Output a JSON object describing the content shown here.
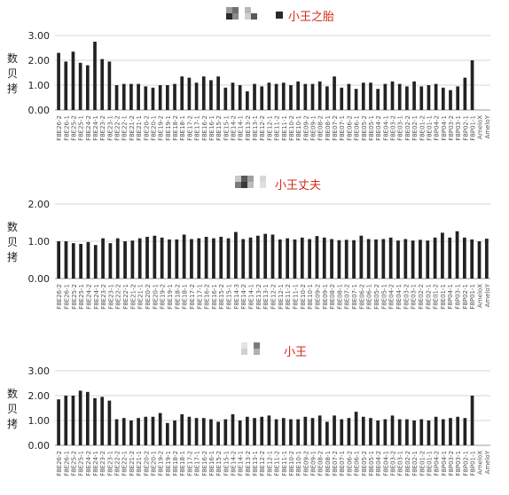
{
  "chart_data": [
    {
      "type": "bar",
      "title": "小王之胎",
      "ylabel": "数贝拷",
      "ylim": [
        0,
        3
      ],
      "yticks": [
        "0.00",
        "1.00",
        "2.00",
        "3.00"
      ],
      "grid": true,
      "bar_color": "#222222",
      "categories": [
        "F8E26-2",
        "F8E26-1",
        "F8E25-2",
        "F8E25-1",
        "F8E24-2",
        "F8E24-1",
        "F8E23-2",
        "F8E23-1",
        "F8E22-2",
        "F8E22-1",
        "F8E21-2",
        "F8E21-1",
        "F8E20-2",
        "F8E20-1",
        "F8E19-2",
        "F8E19-1",
        "F8E18-2",
        "F8E18-1",
        "F8E17-2",
        "F8E17-1",
        "F8E16-2",
        "F8E16-1",
        "F8E15-2",
        "F8E15-1",
        "F8E14-2",
        "F8E14-1",
        "F8E13-2",
        "F8E13-1",
        "F8E12-2",
        "F8E12-1",
        "F8E11-2",
        "F8E11-1",
        "F8E10-2",
        "F8E10-1",
        "F8E09-2",
        "F8E09-1",
        "F8E08-2",
        "F8E08-1",
        "F8E07-2",
        "F8E07-1",
        "F8E06-2",
        "F8E06-1",
        "F8E05-2",
        "F8E05-1",
        "F8E04-2",
        "F8E04-1",
        "F8E03-2",
        "F8E03-1",
        "F8E02-2",
        "F8E02-1",
        "F8E01-2",
        "F8E01-1",
        "F8P04-2",
        "F8P04-1",
        "F8P03-2",
        "F8P03-1",
        "F8P02-1",
        "F8P01-1",
        "AmeloX",
        "AmeloY"
      ],
      "values": [
        2.3,
        1.95,
        2.35,
        1.9,
        1.8,
        2.75,
        2.05,
        1.95,
        1.0,
        1.05,
        1.05,
        1.05,
        0.95,
        0.9,
        1.0,
        1.0,
        1.05,
        1.35,
        1.3,
        1.1,
        1.35,
        1.2,
        1.35,
        0.9,
        1.1,
        1.0,
        0.75,
        1.05,
        0.95,
        1.1,
        1.05,
        1.1,
        1.0,
        1.15,
        1.05,
        1.05,
        1.15,
        0.95,
        1.35,
        0.9,
        1.05,
        0.85,
        1.1,
        1.1,
        0.85,
        1.05,
        1.15,
        1.05,
        0.95,
        1.15,
        0.95,
        1.0,
        1.05,
        0.9,
        0.8,
        0.95,
        1.3,
        2.0,
        0.0,
        0.0
      ]
    },
    {
      "type": "bar",
      "title": "小王丈夫",
      "ylabel": "数贝拷",
      "ylim": [
        0,
        2
      ],
      "yticks": [
        "0.00",
        "1.00",
        "2.00"
      ],
      "grid": true,
      "bar_color": "#222222",
      "categories": [
        "F8E26-2",
        "F8E26-1",
        "F8E25-2",
        "F8E25-1",
        "F8E24-2",
        "F8E24-1",
        "F8E23-2",
        "F8E23-1",
        "F8E22-2",
        "F8E22-1",
        "F8E21-2",
        "F8E21-1",
        "F8E20-2",
        "F8E20-1",
        "F8E19-2",
        "F8E19-1",
        "F8E18-2",
        "F8E18-1",
        "F8E17-2",
        "F8E17-1",
        "F8E16-2",
        "F8E16-1",
        "F8E15-2",
        "F8E15-1",
        "F8E14-3",
        "F8E14-2",
        "F8E14-1",
        "F8E13-2",
        "F8E13-1",
        "F8E12-2",
        "F8E12-1",
        "F8E11-2",
        "F8E11-1",
        "F8E10-2",
        "F8E10-1",
        "F8E09-2",
        "F8E09-1",
        "F8E08-2",
        "F8E08-1",
        "F8E07-2",
        "F8E07-1",
        "F8E06-2",
        "F8E06-1",
        "F8E05-2",
        "F8E05-1",
        "F8E04-2",
        "F8E04-1",
        "F8E03-2",
        "F8E03-1",
        "F8E02-2",
        "F8E02-1",
        "F8E01-2",
        "F8E01-1",
        "F8P04-1",
        "F8P03-1",
        "F8P02-1",
        "F8P01-1",
        "AmeloX",
        "AmeloY"
      ],
      "values": [
        1.0,
        1.0,
        0.95,
        0.93,
        0.98,
        0.9,
        1.08,
        0.95,
        1.08,
        1.0,
        1.02,
        1.08,
        1.12,
        1.15,
        1.1,
        1.05,
        1.05,
        1.18,
        1.06,
        1.08,
        1.12,
        1.08,
        1.12,
        1.08,
        1.25,
        1.06,
        1.1,
        1.15,
        1.2,
        1.18,
        1.05,
        1.08,
        1.05,
        1.1,
        1.06,
        1.14,
        1.1,
        1.06,
        1.03,
        1.04,
        1.03,
        1.15,
        1.06,
        1.05,
        1.06,
        1.1,
        1.02,
        1.06,
        1.02,
        1.04,
        1.02,
        1.1,
        1.23,
        1.1,
        1.27,
        1.1,
        1.05,
        1.0,
        1.07
      ]
    },
    {
      "type": "bar",
      "title": "小王",
      "ylabel": "数贝拷",
      "ylim": [
        0,
        3
      ],
      "yticks": [
        "0.00",
        "1.00",
        "2.00",
        "3.00"
      ],
      "grid": true,
      "bar_color": "#222222",
      "categories": [
        "F8E26-2",
        "F8E26-1",
        "F8E25-2",
        "F8E25-1",
        "F8E24-2",
        "F8E24-1",
        "F8E23-2",
        "F8E23-1",
        "F8E22-2",
        "F8E22-1",
        "F8E21-2",
        "F8E21-1",
        "F8E20-2",
        "F8E20-1",
        "F8E19-2",
        "F8E19-1",
        "F8E18-2",
        "F8E18-1",
        "F8E17-2",
        "F8E17-1",
        "F8E16-2",
        "F8E16-1",
        "F8E15-2",
        "F8E15-1",
        "F8E14-2",
        "F8E14-1",
        "F8E13-2",
        "F8E13-1",
        "F8E12-2",
        "F8E12-1",
        "F8E11-2",
        "F8E11-1",
        "F8E10-2",
        "F8E10-1",
        "F8E09-2",
        "F8E09-1",
        "F8E08-2",
        "F8E08-1",
        "F8E07-2",
        "F8E07-1",
        "F8E06-2",
        "F8E06-1",
        "F8E05-2",
        "F8E05-1",
        "F8E04-2",
        "F8E04-1",
        "F8E03-2",
        "F8E03-1",
        "F8E02-2",
        "F8E02-1",
        "F8E01-2",
        "F8E01-1",
        "F8P04-2",
        "F8P04-1",
        "F8P03-2",
        "F8P03-1",
        "F8P02-1",
        "F8P01-1",
        "AmeloX",
        "AmeloY"
      ],
      "values": [
        1.85,
        2.0,
        2.0,
        2.2,
        2.15,
        1.9,
        1.95,
        1.8,
        1.05,
        1.1,
        1.0,
        1.1,
        1.15,
        1.15,
        1.3,
        0.9,
        1.0,
        1.25,
        1.15,
        1.1,
        1.1,
        1.05,
        0.95,
        1.05,
        1.25,
        1.0,
        1.15,
        1.1,
        1.15,
        1.2,
        1.05,
        1.1,
        1.05,
        1.05,
        1.15,
        1.1,
        1.2,
        0.95,
        1.2,
        1.05,
        1.1,
        1.35,
        1.15,
        1.1,
        1.0,
        1.05,
        1.2,
        1.05,
        1.05,
        1.0,
        1.05,
        1.0,
        1.15,
        1.05,
        1.1,
        1.15,
        1.1,
        2.0,
        0.0,
        0.0
      ]
    }
  ]
}
